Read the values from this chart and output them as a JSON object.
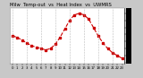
{
  "title": "Milw  Temp-out  vs  Heat Index  vs  UWMRS",
  "bg_color": "#c8c8c8",
  "plot_bg": "#ffffff",
  "line_color": "#cc0000",
  "line_style": "--",
  "marker": "s",
  "marker_size": 1.5,
  "line_width": 0.8,
  "hours": [
    0,
    1,
    2,
    3,
    4,
    5,
    6,
    7,
    8,
    9,
    10,
    11,
    12,
    13,
    14,
    15,
    16,
    17,
    18,
    19,
    20,
    21,
    22,
    23
  ],
  "temps": [
    64,
    63,
    61,
    59,
    57,
    56,
    55,
    54,
    55,
    58,
    63,
    69,
    75,
    79,
    80,
    79,
    76,
    70,
    64,
    59,
    55,
    52,
    50,
    48
  ],
  "ylim": [
    44,
    84
  ],
  "yticks": [
    45,
    50,
    55,
    60,
    65,
    70,
    75,
    80
  ],
  "ytick_labels": [
    "45",
    "50",
    "55",
    "60",
    "65",
    "70",
    "75",
    "80"
  ],
  "xticks": [
    0,
    1,
    2,
    3,
    4,
    5,
    6,
    7,
    8,
    9,
    10,
    11,
    12,
    13,
    14,
    15,
    16,
    17,
    18,
    19,
    20,
    21,
    22,
    23
  ],
  "xtick_labels": [
    "0",
    "1",
    "2",
    "3",
    "4",
    "5",
    "6",
    "7",
    "8",
    "9",
    "10",
    "11",
    "12",
    "13",
    "14",
    "15",
    "16",
    "17",
    "18",
    "19",
    "20",
    "21",
    "22",
    "23"
  ],
  "grid_x_positions": [
    0,
    3,
    6,
    9,
    12,
    15,
    18,
    21
  ],
  "grid_color": "#aaaaaa",
  "grid_style": "--",
  "title_fontsize": 3.8,
  "axis_fontsize": 2.8,
  "right_bar_width": 4
}
